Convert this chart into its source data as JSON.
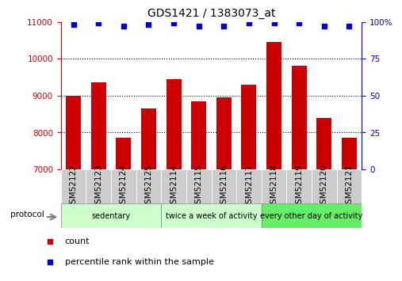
{
  "title": "GDS1421 / 1383073_at",
  "categories": [
    "GSM52122",
    "GSM52123",
    "GSM52124",
    "GSM52125",
    "GSM52114",
    "GSM52115",
    "GSM52116",
    "GSM52117",
    "GSM52118",
    "GSM52119",
    "GSM52120",
    "GSM52121"
  ],
  "bar_values": [
    9000,
    9350,
    7850,
    8650,
    9450,
    8850,
    8950,
    9300,
    10450,
    9800,
    8400,
    7850
  ],
  "percentile_values": [
    98,
    99,
    97,
    98,
    99,
    97,
    97,
    99,
    99,
    99,
    97,
    97
  ],
  "bar_color": "#cc0000",
  "dot_color": "#0000cc",
  "ylim_left": [
    7000,
    11000
  ],
  "ylim_right": [
    0,
    100
  ],
  "yticks_left": [
    7000,
    8000,
    9000,
    10000,
    11000
  ],
  "yticks_right": [
    0,
    25,
    50,
    75,
    100
  ],
  "yticklabels_right": [
    "0",
    "25",
    "50",
    "75",
    "100%"
  ],
  "grid_values": [
    8000,
    9000,
    10000
  ],
  "groups": [
    {
      "label": "sedentary",
      "start": 0,
      "end": 4,
      "color": "#ccffcc"
    },
    {
      "label": "twice a week of activity",
      "start": 4,
      "end": 8,
      "color": "#ccffcc"
    },
    {
      "label": "every other day of activity",
      "start": 8,
      "end": 12,
      "color": "#66ee66"
    }
  ],
  "xtick_bg_color": "#cccccc",
  "legend_count_label": "count",
  "legend_percentile_label": "percentile rank within the sample",
  "protocol_label": "protocol",
  "title_fontsize": 10,
  "tick_fontsize": 7.5,
  "label_fontsize": 8,
  "bar_width": 0.6,
  "background_color": "#ffffff"
}
